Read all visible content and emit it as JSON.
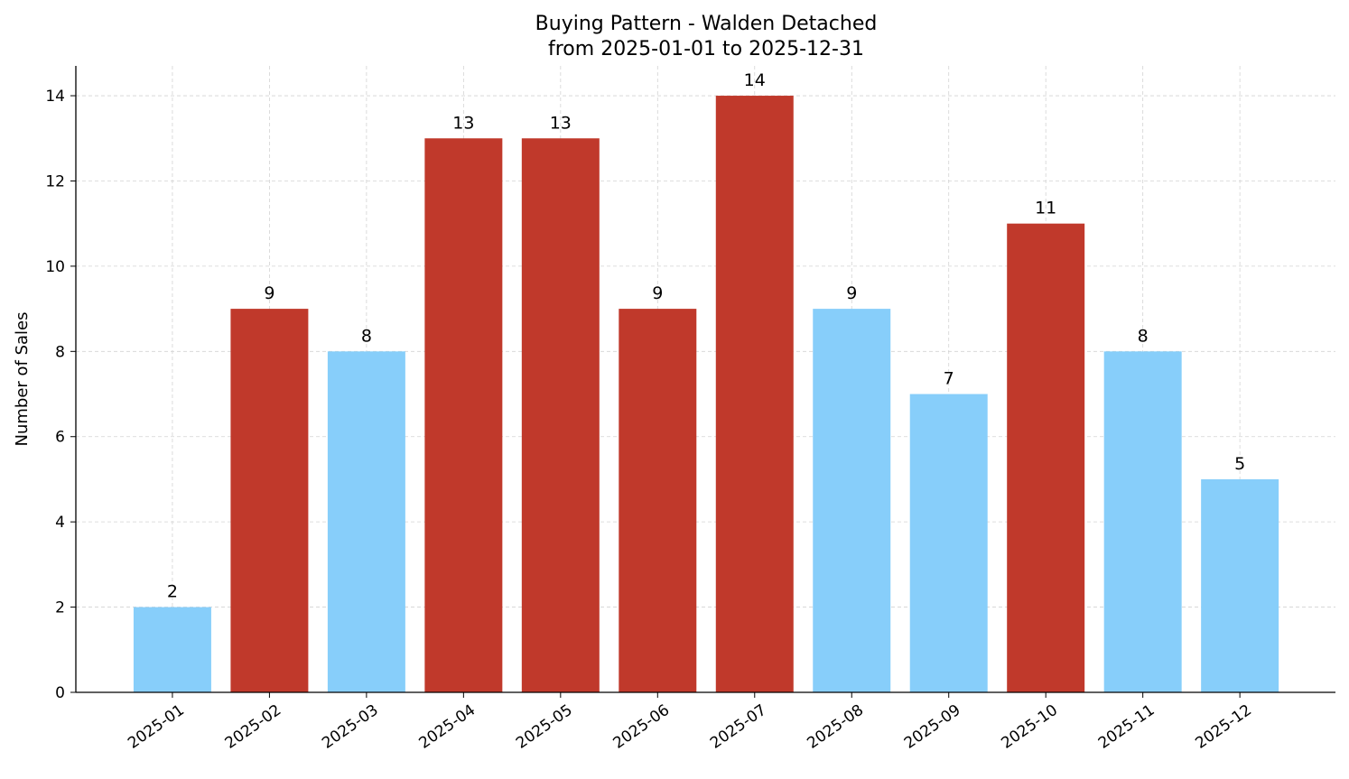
{
  "chart_data": {
    "type": "bar",
    "title": "Buying Pattern - Walden Detached",
    "subtitle": "from 2025-01-01 to 2025-12-31",
    "xlabel": "",
    "ylabel": "Number of Sales",
    "categories": [
      "2025-01",
      "2025-02",
      "2025-03",
      "2025-04",
      "2025-05",
      "2025-06",
      "2025-07",
      "2025-08",
      "2025-09",
      "2025-10",
      "2025-11",
      "2025-12"
    ],
    "values": [
      2,
      9,
      8,
      13,
      13,
      9,
      14,
      9,
      7,
      11,
      8,
      5
    ],
    "bar_colors": [
      "#87cefa",
      "#c0392b",
      "#87cefa",
      "#c0392b",
      "#c0392b",
      "#c0392b",
      "#c0392b",
      "#87cefa",
      "#87cefa",
      "#c0392b",
      "#87cefa",
      "#87cefa"
    ],
    "ylim": [
      0,
      14.7
    ],
    "yticks": [
      0,
      2,
      4,
      6,
      8,
      10,
      12,
      14
    ],
    "grid": true,
    "data_labels": true
  }
}
